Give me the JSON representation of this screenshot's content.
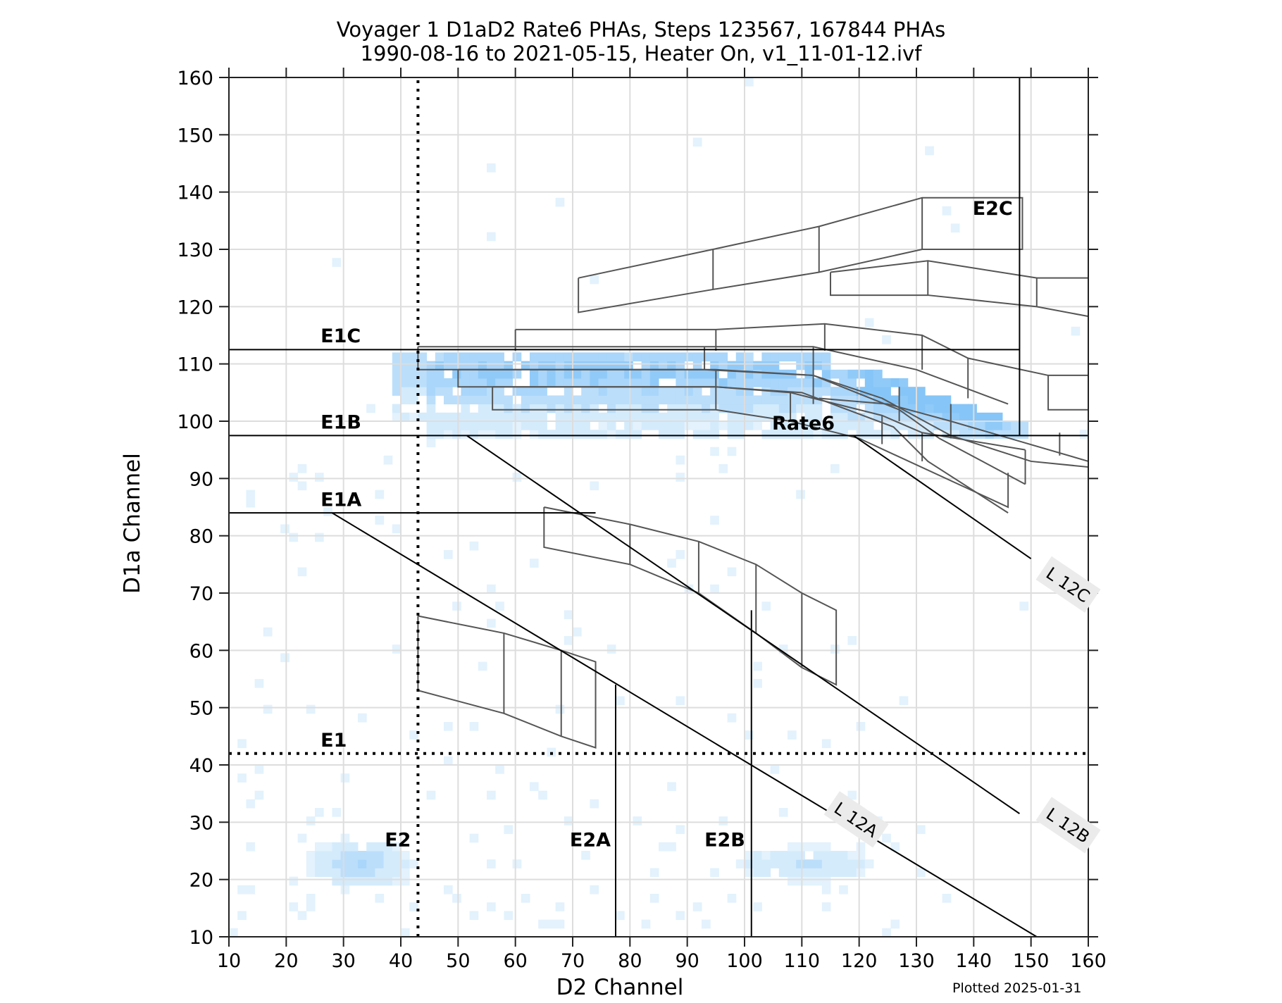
{
  "title": {
    "line1": "Voyager 1 D1aD2 Rate6 PHAs, Steps 123567, 167844 PHAs",
    "line2": "1990-08-16 to 2021-05-15, Heater On, v1_11-01-12.ivf"
  },
  "footer": {
    "plotted": "Plotted 2025-01-31"
  },
  "colors": {
    "heat_light": "#E3F2FD",
    "heat_mid": "#BBDEFB",
    "heat_dark": "#90CAF9",
    "grid": "#DDDDDD",
    "box": "#555555",
    "line": "#000000",
    "label_bg": "#EBEBEB"
  },
  "chart_data": {
    "type": "heatmap",
    "title": "Voyager 1 D1aD2 Rate6 PHAs, Steps 123567, 167844 PHAs\n1990-08-16 to 2021-05-15, Heater On, v1_11-01-12.ivf",
    "xlabel": "D2 Channel",
    "ylabel": "D1a Channel",
    "xlim": [
      10,
      160
    ],
    "ylim": [
      10,
      160
    ],
    "xticks": [
      10,
      20,
      30,
      40,
      50,
      60,
      70,
      80,
      90,
      100,
      110,
      120,
      130,
      140,
      150,
      160
    ],
    "yticks": [
      10,
      20,
      30,
      40,
      50,
      60,
      70,
      80,
      90,
      100,
      110,
      120,
      130,
      140,
      150,
      160
    ],
    "grid": true,
    "density_regions": [
      {
        "name": "Rate6 band",
        "x": [
          38,
          148
        ],
        "y": [
          97,
          111
        ],
        "intensity": "high, densest near x 125-145, y 100-108"
      },
      {
        "name": "E2 cluster",
        "x": [
          24,
          50
        ],
        "y": [
          17,
          27
        ],
        "intensity": "low-medium, peak near (32,22)"
      },
      {
        "name": "E2B cluster",
        "x": [
          97,
          130
        ],
        "y": [
          18,
          26
        ],
        "intensity": "low"
      }
    ],
    "threshold_lines": [
      {
        "label": "E1C",
        "type": "horizontal",
        "y": 112.5,
        "x": [
          10,
          148
        ],
        "style": "solid"
      },
      {
        "label": "E1B",
        "type": "horizontal",
        "y": 97.5,
        "x": [
          10,
          160
        ],
        "style": "solid"
      },
      {
        "label": "E1A",
        "type": "horizontal",
        "y": 84,
        "x": [
          10,
          74
        ],
        "style": "solid"
      },
      {
        "label": "E1",
        "type": "horizontal",
        "y": 42,
        "x": [
          10,
          160
        ],
        "style": "dotted"
      },
      {
        "label": "E2",
        "type": "vertical",
        "x": 43,
        "y": [
          10,
          160
        ],
        "style": "dotted"
      },
      {
        "label": "E2A",
        "type": "vertical",
        "x": 77.5,
        "y": [
          10,
          54
        ],
        "style": "solid"
      },
      {
        "label": "E2B",
        "type": "vertical",
        "x": 101.2,
        "y": [
          10,
          67
        ],
        "style": "solid"
      },
      {
        "label": "E2C",
        "type": "vertical",
        "x": 148,
        "y": [
          97.5,
          160
        ],
        "style": "solid"
      }
    ],
    "diagonal_lines": [
      {
        "label": "L 12A",
        "points": [
          [
            28,
            84
          ],
          [
            151,
            10
          ]
        ]
      },
      {
        "label": "L 12B",
        "points": [
          [
            51.5,
            97.5
          ],
          [
            148,
            31.5
          ]
        ]
      },
      {
        "label": "L 12C",
        "points": [
          [
            119,
            97.5
          ],
          [
            150,
            76
          ]
        ]
      }
    ],
    "annotations": [
      "E1C",
      "E1B",
      "E1A",
      "E1",
      "E2",
      "E2A",
      "E2B",
      "E2C",
      "Rate6",
      "L 12A",
      "L 12B",
      "L 12C"
    ]
  },
  "labels": {
    "E1C": "E1C",
    "E1B": "E1B",
    "E1A": "E1A",
    "E1": "E1",
    "E2": "E2",
    "E2A": "E2A",
    "E2B": "E2B",
    "E2C": "E2C",
    "Rate6": "Rate6",
    "L12A": "L 12A",
    "L12B": "L 12B",
    "L12C": "L 12C"
  },
  "axes": {
    "xlabel": "D2 Channel",
    "ylabel": "D1a Channel",
    "xticks": [
      "10",
      "20",
      "30",
      "40",
      "50",
      "60",
      "70",
      "80",
      "90",
      "100",
      "110",
      "120",
      "130",
      "140",
      "150",
      "160"
    ],
    "yticks": [
      "10",
      "20",
      "30",
      "40",
      "50",
      "60",
      "70",
      "80",
      "90",
      "100",
      "110",
      "120",
      "130",
      "140",
      "150",
      "160"
    ]
  }
}
